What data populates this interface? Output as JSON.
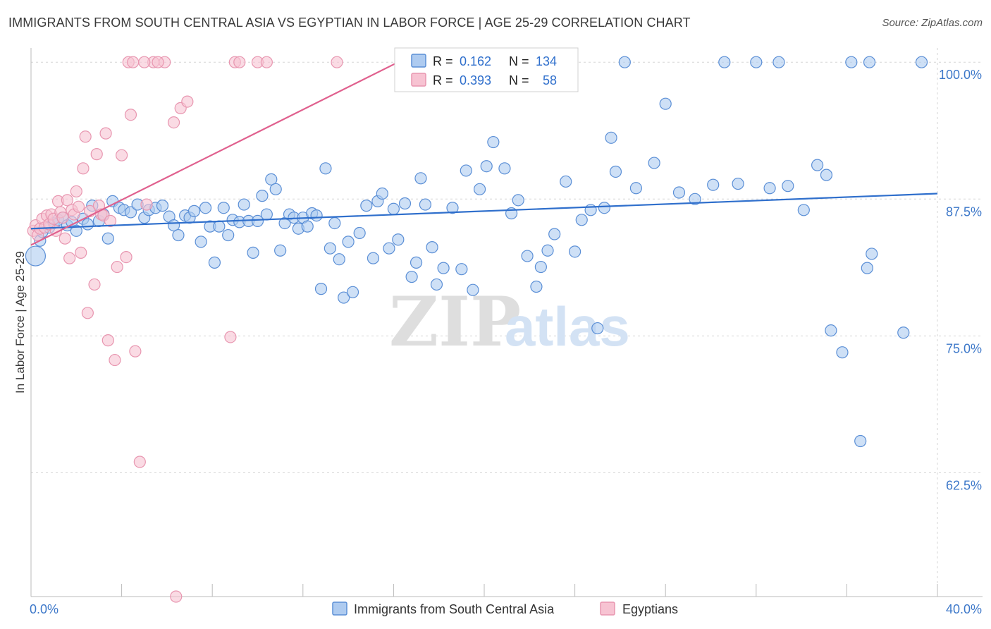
{
  "title": "IMMIGRANTS FROM SOUTH CENTRAL ASIA VS EGYPTIAN IN LABOR FORCE | AGE 25-29 CORRELATION CHART",
  "source": "Source: ZipAtlas.com",
  "watermark": {
    "zip": "ZIP",
    "atlas": "atlas"
  },
  "colors": {
    "blue_fill": "#aecbf0",
    "blue_stroke": "#5b8fd6",
    "blue_line": "#2f6fcc",
    "pink_fill": "#f7c3d2",
    "pink_stroke": "#e896b0",
    "pink_line": "#e0608e",
    "tick_label": "#3d78c9",
    "grid": "#d5d5d5"
  },
  "stats_legend": {
    "rows": [
      {
        "r_label": "R =",
        "r_value": "0.162",
        "n_label": "N =",
        "n_value": "134",
        "series": "blue"
      },
      {
        "r_label": "R =",
        "r_value": "0.393",
        "n_label": "N =",
        "n_value": "58",
        "series": "pink"
      }
    ]
  },
  "bottom_legend": [
    {
      "label": "Immigrants from South Central Asia",
      "series": "blue"
    },
    {
      "label": "Egyptians",
      "series": "pink"
    }
  ],
  "chart_data": {
    "type": "scatter",
    "title": "IMMIGRANTS FROM SOUTH CENTRAL ASIA VS EGYPTIAN IN LABOR FORCE | AGE 25-29 CORRELATION CHART",
    "xlabel": "",
    "ylabel": "In Labor Force | Age 25-29",
    "xlim": [
      0,
      40
    ],
    "ylim": [
      51.2,
      101.3
    ],
    "x_tick_labels": [
      {
        "value": 0,
        "label": "0.0%"
      },
      {
        "value": 40,
        "label": "40.0%"
      }
    ],
    "y_tick_labels": [
      {
        "value": 100,
        "label": "100.0%"
      },
      {
        "value": 87.5,
        "label": "87.5%"
      },
      {
        "value": 75,
        "label": "75.0%"
      },
      {
        "value": 62.5,
        "label": "62.5%"
      }
    ],
    "grid": true,
    "legend_position": "top-center",
    "series": [
      {
        "key": "blue",
        "name": "Immigrants from South Central Asia",
        "r": 0.162,
        "n": 134,
        "trend": {
          "x": [
            0,
            40
          ],
          "y": [
            84.8,
            88.0
          ]
        },
        "points": [
          [
            0.2,
            82.3
          ],
          [
            0.4,
            83.7
          ],
          [
            0.5,
            84.5
          ],
          [
            0.8,
            84.9
          ],
          [
            1.0,
            85.3
          ],
          [
            1.2,
            85.6
          ],
          [
            1.4,
            85.8
          ],
          [
            1.6,
            85.1
          ],
          [
            1.8,
            85.4
          ],
          [
            2.0,
            84.6
          ],
          [
            2.3,
            85.7
          ],
          [
            2.5,
            85.2
          ],
          [
            2.7,
            86.9
          ],
          [
            3.0,
            85.5
          ],
          [
            3.2,
            86.1
          ],
          [
            3.4,
            83.9
          ],
          [
            3.6,
            87.3
          ],
          [
            3.9,
            86.7
          ],
          [
            4.1,
            86.5
          ],
          [
            4.4,
            86.3
          ],
          [
            4.7,
            87.0
          ],
          [
            5.0,
            85.8
          ],
          [
            5.2,
            86.5
          ],
          [
            5.5,
            86.7
          ],
          [
            5.8,
            86.9
          ],
          [
            6.1,
            85.9
          ],
          [
            6.3,
            85.1
          ],
          [
            6.5,
            84.2
          ],
          [
            6.8,
            86.0
          ],
          [
            7.0,
            85.8
          ],
          [
            7.2,
            86.4
          ],
          [
            7.5,
            83.6
          ],
          [
            7.7,
            86.7
          ],
          [
            7.9,
            85.0
          ],
          [
            8.1,
            81.7
          ],
          [
            8.3,
            85.0
          ],
          [
            8.5,
            86.7
          ],
          [
            8.7,
            84.2
          ],
          [
            8.9,
            85.6
          ],
          [
            9.2,
            85.4
          ],
          [
            9.4,
            87.0
          ],
          [
            9.6,
            85.5
          ],
          [
            9.8,
            82.6
          ],
          [
            10.0,
            85.5
          ],
          [
            10.2,
            87.8
          ],
          [
            10.4,
            86.1
          ],
          [
            10.6,
            89.3
          ],
          [
            10.8,
            88.4
          ],
          [
            11.0,
            82.8
          ],
          [
            11.2,
            85.3
          ],
          [
            11.4,
            86.1
          ],
          [
            11.6,
            85.8
          ],
          [
            11.8,
            84.8
          ],
          [
            12.0,
            85.8
          ],
          [
            12.2,
            85.0
          ],
          [
            12.4,
            86.2
          ],
          [
            12.6,
            86.0
          ],
          [
            12.8,
            79.3
          ],
          [
            13.0,
            90.3
          ],
          [
            13.2,
            83.0
          ],
          [
            13.4,
            85.3
          ],
          [
            13.6,
            82.0
          ],
          [
            13.8,
            78.5
          ],
          [
            14.0,
            83.6
          ],
          [
            14.2,
            79.0
          ],
          [
            14.5,
            84.4
          ],
          [
            14.8,
            86.9
          ],
          [
            15.1,
            82.1
          ],
          [
            15.3,
            87.3
          ],
          [
            15.5,
            88.0
          ],
          [
            15.8,
            83.0
          ],
          [
            16.0,
            86.6
          ],
          [
            16.2,
            83.8
          ],
          [
            16.5,
            87.1
          ],
          [
            16.8,
            80.4
          ],
          [
            17.0,
            81.7
          ],
          [
            17.2,
            89.4
          ],
          [
            17.4,
            87.0
          ],
          [
            17.7,
            83.1
          ],
          [
            17.9,
            79.7
          ],
          [
            18.2,
            81.2
          ],
          [
            18.6,
            86.7
          ],
          [
            19.0,
            81.1
          ],
          [
            19.2,
            90.1
          ],
          [
            19.5,
            79.2
          ],
          [
            19.8,
            88.4
          ],
          [
            20.1,
            90.5
          ],
          [
            20.4,
            92.7
          ],
          [
            20.7,
            100.0
          ],
          [
            20.9,
            90.3
          ],
          [
            21.2,
            86.2
          ],
          [
            21.5,
            87.4
          ],
          [
            21.9,
            82.3
          ],
          [
            22.3,
            79.5
          ],
          [
            22.5,
            81.3
          ],
          [
            22.8,
            82.8
          ],
          [
            23.1,
            84.3
          ],
          [
            23.6,
            89.1
          ],
          [
            24.0,
            82.7
          ],
          [
            24.3,
            85.6
          ],
          [
            24.7,
            86.5
          ],
          [
            25.0,
            75.7
          ],
          [
            25.3,
            86.7
          ],
          [
            25.6,
            93.1
          ],
          [
            25.8,
            90.0
          ],
          [
            26.2,
            100.0
          ],
          [
            26.7,
            88.5
          ],
          [
            27.5,
            90.8
          ],
          [
            28.0,
            96.2
          ],
          [
            28.6,
            88.1
          ],
          [
            29.3,
            87.5
          ],
          [
            30.1,
            88.8
          ],
          [
            30.6,
            100.0
          ],
          [
            31.2,
            88.9
          ],
          [
            32.0,
            100.0
          ],
          [
            32.6,
            88.5
          ],
          [
            33.0,
            100.0
          ],
          [
            33.4,
            88.7
          ],
          [
            34.1,
            86.5
          ],
          [
            34.7,
            90.6
          ],
          [
            35.1,
            89.7
          ],
          [
            35.3,
            75.5
          ],
          [
            35.8,
            73.5
          ],
          [
            36.2,
            100.0
          ],
          [
            36.6,
            65.4
          ],
          [
            36.9,
            81.2
          ],
          [
            37.0,
            100.0
          ],
          [
            37.1,
            82.5
          ],
          [
            38.5,
            75.3
          ],
          [
            39.3,
            100.0
          ]
        ]
      },
      {
        "key": "pink",
        "name": "Egyptians",
        "r": 0.393,
        "n": 58,
        "trend": {
          "x": [
            0,
            16.2
          ],
          "y": [
            83.3,
            100.0
          ]
        },
        "points": [
          [
            0.1,
            84.6
          ],
          [
            0.2,
            85.1
          ],
          [
            0.3,
            84.2
          ],
          [
            0.4,
            84.8
          ],
          [
            0.5,
            85.7
          ],
          [
            0.6,
            84.9
          ],
          [
            0.7,
            86.0
          ],
          [
            0.8,
            85.2
          ],
          [
            0.9,
            86.1
          ],
          [
            1.0,
            85.7
          ],
          [
            1.1,
            84.6
          ],
          [
            1.2,
            87.3
          ],
          [
            1.3,
            86.3
          ],
          [
            1.4,
            85.8
          ],
          [
            1.5,
            83.9
          ],
          [
            1.6,
            87.4
          ],
          [
            1.7,
            82.1
          ],
          [
            1.8,
            86.5
          ],
          [
            1.9,
            86.1
          ],
          [
            2.0,
            88.2
          ],
          [
            2.1,
            86.8
          ],
          [
            2.2,
            82.6
          ],
          [
            2.3,
            90.3
          ],
          [
            2.4,
            93.2
          ],
          [
            2.5,
            77.1
          ],
          [
            2.6,
            86.4
          ],
          [
            2.8,
            79.7
          ],
          [
            2.9,
            91.6
          ],
          [
            3.0,
            86.9
          ],
          [
            3.1,
            86.1
          ],
          [
            3.2,
            86.0
          ],
          [
            3.3,
            93.5
          ],
          [
            3.4,
            74.6
          ],
          [
            3.5,
            85.5
          ],
          [
            3.7,
            72.8
          ],
          [
            3.8,
            81.3
          ],
          [
            4.0,
            91.5
          ],
          [
            4.2,
            82.2
          ],
          [
            4.4,
            95.2
          ],
          [
            4.6,
            73.6
          ],
          [
            4.8,
            63.5
          ],
          [
            5.1,
            87.0
          ],
          [
            5.4,
            100.0
          ],
          [
            5.9,
            100.0
          ],
          [
            6.3,
            94.5
          ],
          [
            6.6,
            95.8
          ],
          [
            6.9,
            96.4
          ],
          [
            8.8,
            74.9
          ],
          [
            4.3,
            100.0
          ],
          [
            4.5,
            100.0
          ],
          [
            5.6,
            100.0
          ],
          [
            9.0,
            100.0
          ],
          [
            9.2,
            100.0
          ],
          [
            10.0,
            100.0
          ],
          [
            10.4,
            100.0
          ],
          [
            13.5,
            100.0
          ],
          [
            5.0,
            100.0
          ],
          [
            6.4,
            51.2
          ]
        ]
      }
    ]
  }
}
